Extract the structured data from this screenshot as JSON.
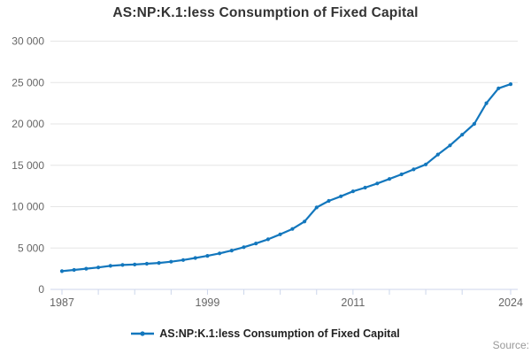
{
  "title": "AS:NP:K.1:less Consumption of Fixed Capital",
  "source_label": "Source:",
  "legend": {
    "series_label": "AS:NP:K.1:less Consumption of Fixed Capital"
  },
  "colors": {
    "series": "#1377bd",
    "grid": "#e6e6e6",
    "axis": "#ccd6eb",
    "axis_label": "#666666",
    "title_text": "#333333"
  },
  "chart_data": {
    "type": "line",
    "title": "AS:NP:K.1:less Consumption of Fixed Capital",
    "xlabel": "",
    "ylabel": "",
    "ylim": [
      0,
      30000
    ],
    "grid": true,
    "legend_position": "bottom",
    "series_name": "AS:NP:K.1:less Consumption of Fixed Capital",
    "x": [
      1987,
      1988,
      1989,
      1990,
      1991,
      1992,
      1993,
      1994,
      1995,
      1996,
      1997,
      1998,
      1999,
      2000,
      2001,
      2002,
      2003,
      2004,
      2005,
      2006,
      2007,
      2008,
      2009,
      2010,
      2011,
      2012,
      2013,
      2014,
      2015,
      2016,
      2017,
      2018,
      2019,
      2020,
      2021,
      2022,
      2023,
      2024
    ],
    "values": [
      2200,
      2350,
      2500,
      2650,
      2850,
      2950,
      3000,
      3100,
      3200,
      3350,
      3550,
      3800,
      4050,
      4350,
      4700,
      5100,
      5550,
      6050,
      6650,
      7300,
      8200,
      9900,
      10700,
      11250,
      11850,
      12300,
      12800,
      13350,
      13900,
      14500,
      15100,
      16300,
      17400,
      18700,
      20000,
      22500,
      24300,
      24800
    ],
    "y_ticks": [
      0,
      5000,
      10000,
      15000,
      20000,
      25000,
      30000
    ],
    "y_tick_labels": [
      "0",
      "5 000",
      "10 000",
      "15 000",
      "20 000",
      "25 000",
      "30 000"
    ],
    "x_ticks": [
      1987,
      1990,
      1993,
      1996,
      1999,
      2002,
      2005,
      2008,
      2011,
      2014,
      2017,
      2020,
      2024
    ],
    "x_labeled_ticks": [
      1987,
      1999,
      2011,
      2024
    ]
  }
}
